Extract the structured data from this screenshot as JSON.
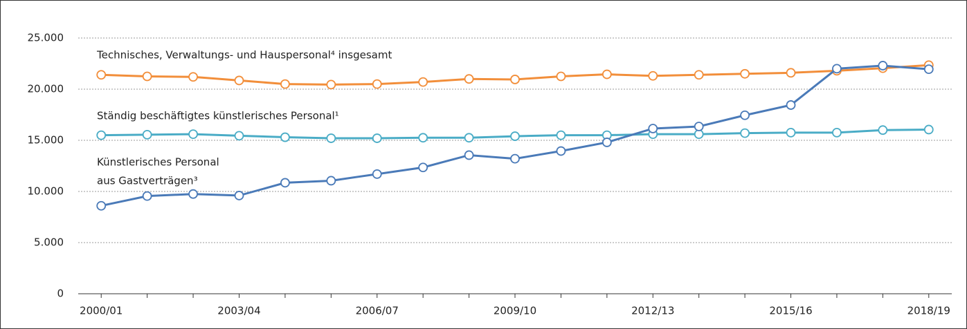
{
  "chart_data": {
    "type": "line",
    "categories": [
      "2000/01",
      null,
      null,
      "2003/04",
      null,
      null,
      "2006/07",
      null,
      null,
      "2009/10",
      null,
      null,
      "2012/13",
      null,
      null,
      "2015/16",
      null,
      null,
      "2018/19"
    ],
    "series": [
      {
        "name": [
          "Technisches, Verwaltungs- und Hauspersonal⁴ insgesamt"
        ],
        "color": "#f28e3a",
        "values": [
          21400,
          21250,
          21200,
          20850,
          20500,
          20450,
          20500,
          20700,
          21000,
          20950,
          21250,
          21450,
          21300,
          21400,
          21500,
          21600,
          21800,
          22050,
          22350
        ]
      },
      {
        "name": [
          "Ständig beschäftigtes künstlerisches Personal¹"
        ],
        "color": "#4aacc6",
        "values": [
          15500,
          15550,
          15600,
          15450,
          15300,
          15200,
          15200,
          15250,
          15250,
          15400,
          15500,
          15500,
          15600,
          15600,
          15700,
          15750,
          15750,
          16000,
          16050
        ]
      },
      {
        "name": [
          "Künstlerisches Personal",
          "aus Gastverträgen³"
        ],
        "color": "#4a7ab8",
        "values": [
          8600,
          9550,
          9750,
          9600,
          10850,
          11050,
          11700,
          12350,
          13550,
          13200,
          13950,
          14800,
          16150,
          16350,
          17450,
          18450,
          22000,
          22300,
          21950
        ]
      }
    ],
    "ylim": [
      0,
      25000
    ],
    "yticks": [
      0,
      {
        "value": 5000,
        "label": "5.000"
      },
      {
        "value": 10000,
        "label": "10.000"
      },
      {
        "value": 15000,
        "label": "15.000"
      },
      {
        "value": 20000,
        "label": "20.000"
      },
      {
        "value": 25000,
        "label": "25.000"
      }
    ],
    "grid": true
  }
}
